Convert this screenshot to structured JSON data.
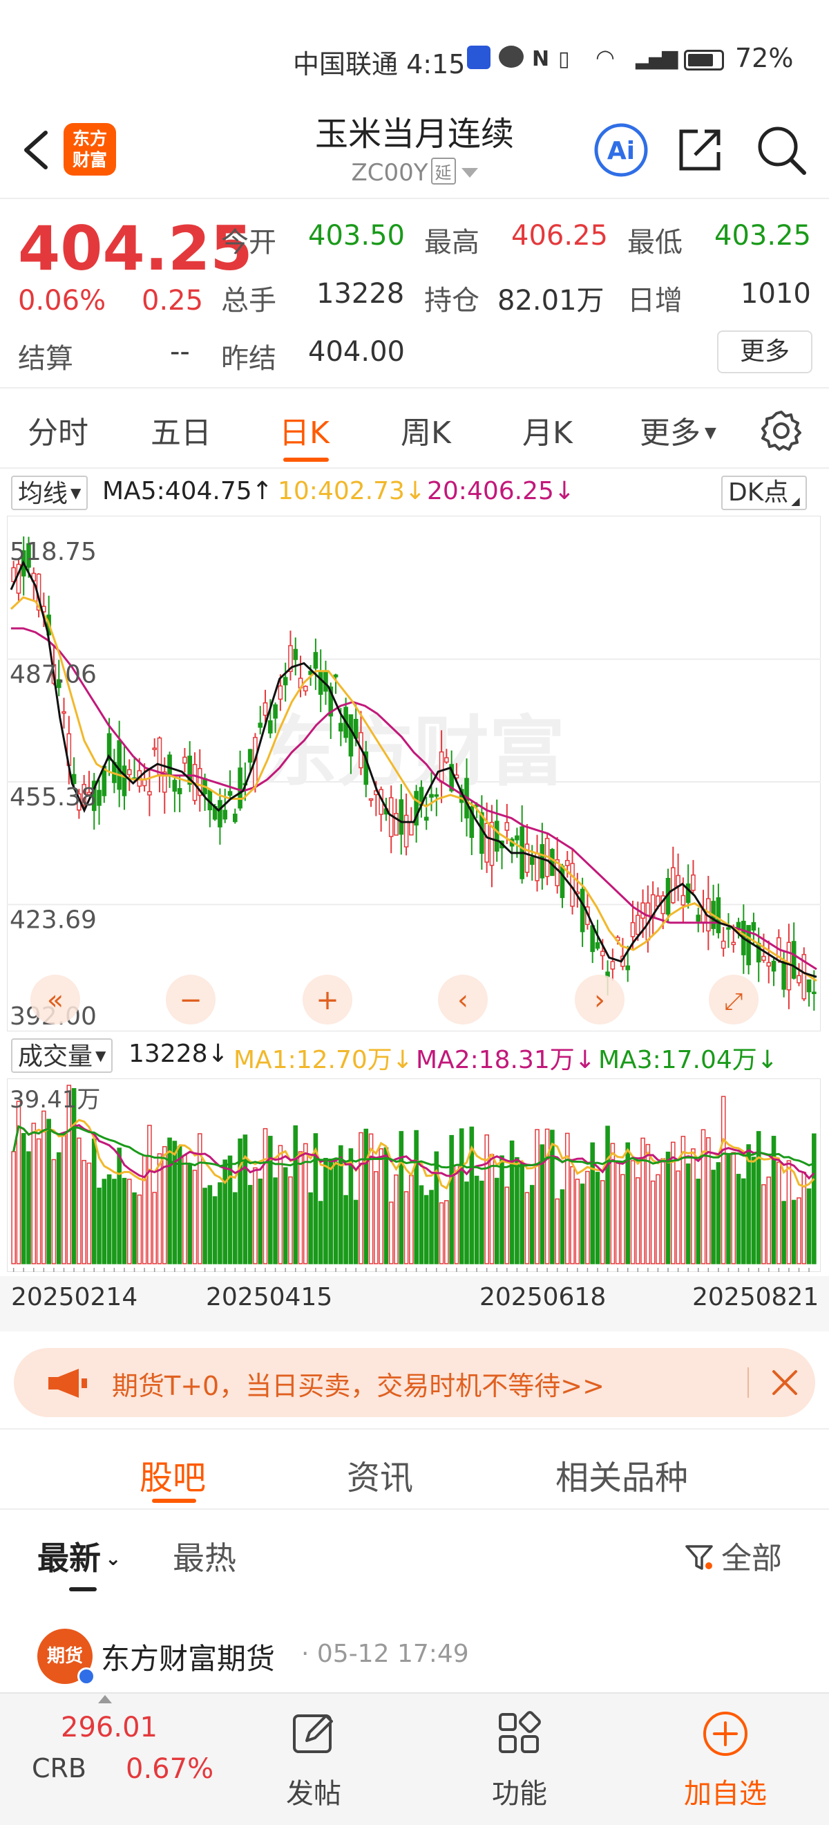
{
  "status_bar": {
    "carrier_time": "中国联通 4:15",
    "battery": "72%"
  },
  "header": {
    "logo_line1": "东方",
    "logo_line2": "财富",
    "title": "玉米当月连续",
    "code": "ZC00Y",
    "code_tag": "延"
  },
  "quote": {
    "price": "404.25",
    "change_pct": "0.06%",
    "change": "0.25",
    "open_label": "今开",
    "open": "403.50",
    "high_label": "最高",
    "high": "406.25",
    "low_label": "最低",
    "low": "403.25",
    "volume_label": "总手",
    "volume": "13228",
    "oi_label": "持仓",
    "oi": "82.01万",
    "daily_inc_label": "日增",
    "daily_inc": "1010",
    "settle_label": "结算",
    "settle": "--",
    "prev_settle_label": "昨结",
    "prev_settle": "404.00",
    "more_label": "更多"
  },
  "period_tabs": [
    "分时",
    "五日",
    "日K",
    "周K",
    "月K",
    "更多"
  ],
  "ma_legend": {
    "selector": "均线",
    "ma5": "MA5:404.75↑",
    "ma10": "10:402.73↓",
    "ma20": "20:406.25↓",
    "dk": "DK点"
  },
  "chart_data": {
    "type": "candlestick",
    "y_ticks": [
      "518.75",
      "487.06",
      "455.38",
      "423.69",
      "392.00"
    ],
    "ylim": [
      392.0,
      518.75
    ],
    "x_labels": [
      "20250214",
      "20250415",
      "20250618",
      "20250821"
    ],
    "colors": {
      "up": "#e4393c",
      "down": "#1a9a1a",
      "ma5": "#111111",
      "ma10": "#f2b82b",
      "ma20": "#c2187a"
    },
    "ma5_path": [
      505,
      512,
      506,
      494,
      472,
      455,
      448,
      455,
      462,
      458,
      455,
      458,
      460,
      459,
      458,
      455,
      451,
      448,
      451,
      453,
      461,
      472,
      482,
      485,
      486,
      483,
      480,
      473,
      468,
      462,
      453,
      447,
      445,
      445,
      452,
      458,
      459,
      452,
      446,
      441,
      440,
      437,
      437,
      436,
      435,
      432,
      428,
      423,
      416,
      410,
      409,
      414,
      418,
      423,
      427,
      429,
      426,
      421,
      419,
      418,
      415,
      413,
      411,
      409,
      408,
      406,
      405
    ],
    "ma10_path": [
      500,
      503,
      502,
      497,
      488,
      477,
      466,
      460,
      458,
      457,
      456,
      456,
      457,
      457,
      456,
      455,
      454,
      452,
      451,
      451,
      454,
      461,
      469,
      476,
      481,
      484,
      484,
      480,
      476,
      471,
      466,
      461,
      456,
      451,
      449,
      451,
      452,
      451,
      449,
      445,
      442,
      440,
      438,
      437,
      436,
      434,
      431,
      428,
      423,
      417,
      413,
      412,
      414,
      417,
      421,
      423,
      424,
      422,
      420,
      418,
      416,
      414,
      412,
      410,
      408,
      406,
      404
    ],
    "ma20_path": [
      495,
      495,
      494,
      492,
      489,
      485,
      480,
      475,
      470,
      466,
      462,
      459,
      458,
      457,
      457,
      457,
      456,
      455,
      454,
      453,
      454,
      456,
      459,
      463,
      466,
      470,
      473,
      475,
      476,
      475,
      473,
      470,
      467,
      463,
      460,
      456,
      454,
      452,
      450,
      448,
      447,
      446,
      444,
      443,
      442,
      440,
      438,
      435,
      432,
      429,
      426,
      423,
      421,
      420,
      419,
      419,
      419,
      419,
      419,
      418,
      417,
      416,
      414,
      412,
      411,
      409,
      407
    ],
    "volume_label": "成交量",
    "volume_value": "13228↓",
    "vol_ma1": "MA1:12.70万↓",
    "vol_ma2": "MA2:18.31万↓",
    "vol_ma3": "MA3:17.04万↓",
    "vol_max": "39.41万"
  },
  "banner": {
    "text": "期货T+0，当日买卖，交易时机不等待>>"
  },
  "content_tabs": [
    "股吧",
    "资讯",
    "相关品种"
  ],
  "filter": {
    "latest": "最新",
    "hot": "最热",
    "all": "全部"
  },
  "post": {
    "avatar_text": "期货",
    "author": "东方财富期货",
    "time": "· 05-12 17:49"
  },
  "bottom_bar": {
    "index_value": "296.01",
    "index_name": "CRB",
    "index_change": "0.67%",
    "post_label": "发帖",
    "func_label": "功能",
    "add_label": "加自选"
  }
}
